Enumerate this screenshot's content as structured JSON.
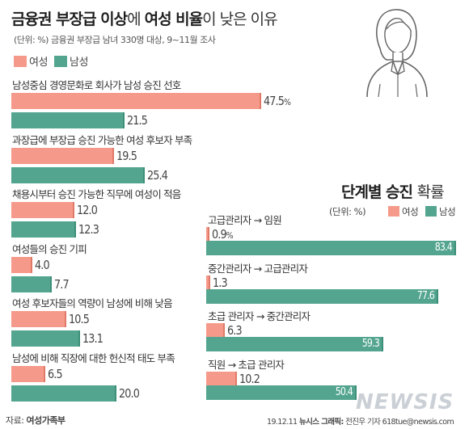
{
  "title": {
    "part1": "금융권 부장급 이상",
    "part2": "에 ",
    "part3": "여성 비율",
    "part4": "이 낮은 이유"
  },
  "subtitle": "(단위: %) 금융권 부장급 남녀 330명 대상, 9~11월 조사",
  "colors": {
    "female": "#f59a8a",
    "male": "#53a58f",
    "female_dark": "#e07a68",
    "male_dark": "#3d8f78"
  },
  "legend": {
    "female": "여성",
    "male": "남성"
  },
  "chart_data": [
    {
      "type": "bar",
      "orientation": "horizontal",
      "unit": "%",
      "categories": [
        "남성중심 경영문화로 회사가 남성 승진 선호",
        "과장급에 부장급 승진 가능한 여성 후보자 부족",
        "채용시부터 승진 가능한 직무에 여성이 적음",
        "여성들의 승진 기피",
        "여성 후보자들의 역량이 남성에 비해 낮음",
        "남성에 비해 직장에 대한 헌신적 태도 부족"
      ],
      "series": [
        {
          "name": "여성",
          "values": [
            47.5,
            19.5,
            12.0,
            4.0,
            10.5,
            6.5
          ]
        },
        {
          "name": "남성",
          "values": [
            21.5,
            25.4,
            12.3,
            7.7,
            13.1,
            20.0
          ]
        }
      ],
      "labels": {
        "female": [
          "47.5",
          "19.5",
          "12.0",
          "4.0",
          "10.5",
          "6.5"
        ],
        "male": [
          "21.5",
          "25.4",
          "12.3",
          "7.7",
          "13.1",
          "20.0"
        ]
      },
      "first_unit_label": "%"
    },
    {
      "type": "bar",
      "orientation": "horizontal",
      "title_part1": "단계별 승진 ",
      "title_part2": "확률",
      "legend_unit": "(단위: %)",
      "categories": [
        "고급관리자 → 임원",
        "중간관리자 → 고급관리자",
        "초급 관리자 → 중간관리자",
        "직원 → 초급 관리자"
      ],
      "series": [
        {
          "name": "여성",
          "values": [
            0.9,
            1.3,
            6.3,
            10.2
          ]
        },
        {
          "name": "남성",
          "values": [
            83.4,
            77.6,
            59.3,
            50.4
          ]
        }
      ],
      "labels": {
        "female": [
          "0.9",
          "1.3",
          "6.3",
          "10.2"
        ],
        "male": [
          "83.4",
          "77.6",
          "59.3",
          "50.4"
        ]
      },
      "first_unit_label": "%"
    }
  ],
  "footer": {
    "source_label": "자료: ",
    "source": "여성가족부",
    "date": "19.12.11 ",
    "credit_label": "뉴시스 그래픽:",
    "credit": " 전진우 기자 618tue@newsis.com"
  },
  "watermark": "NEWSIS",
  "illustration": "businesswoman-icon"
}
